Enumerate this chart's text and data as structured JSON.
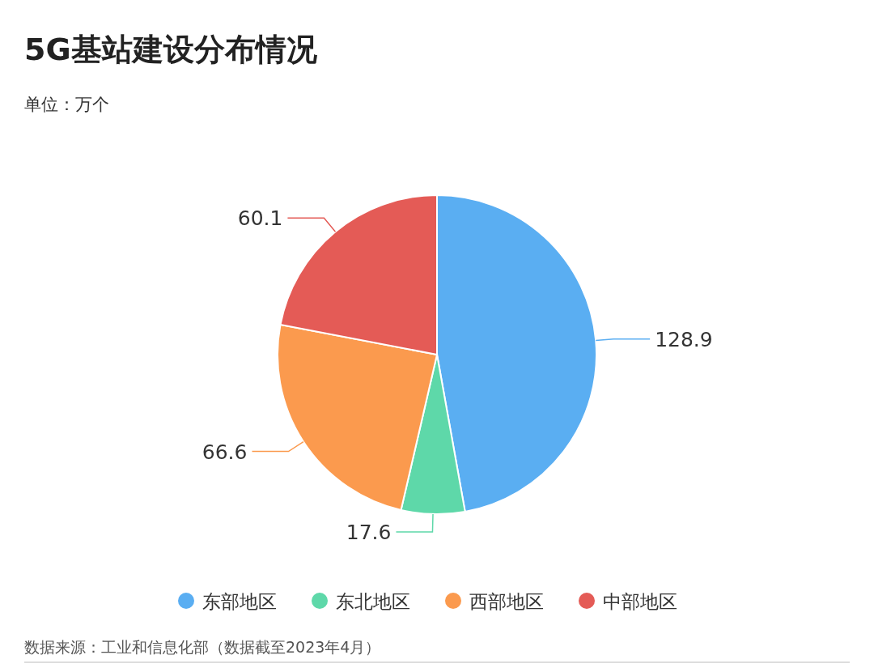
{
  "chart_data": {
    "type": "pie",
    "title": "5G基站建设分布情况",
    "subtitle": "单位：万个",
    "categories": [
      "东部地区",
      "东北地区",
      "西部地区",
      "中部地区"
    ],
    "values": [
      128.9,
      17.6,
      66.6,
      60.1
    ],
    "colors": [
      "#5aaef2",
      "#5ed8a9",
      "#fb9a4e",
      "#e45b56"
    ],
    "data_labels": true,
    "legend": "bottom",
    "annotations": [
      "数据来源：工业和信息化部（数据截至2023年4月）"
    ]
  }
}
